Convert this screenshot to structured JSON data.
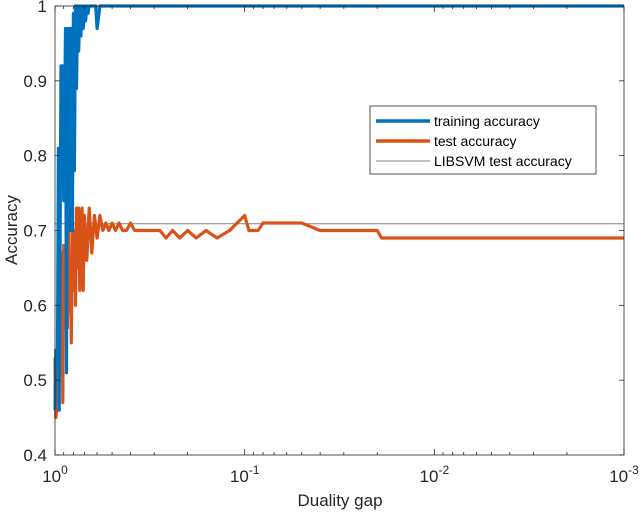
{
  "chart_data": {
    "type": "line",
    "title": "",
    "xlabel": "Duality gap",
    "ylabel": "Accuracy",
    "xscale": "log",
    "x_reversed": true,
    "xlim": [
      1,
      0.001
    ],
    "ylim": [
      0.4,
      1
    ],
    "x_ticks": [
      "10^0",
      "10^-1",
      "10^-2",
      "10^-3"
    ],
    "y_ticks": [
      "0.4",
      "0.5",
      "0.6",
      "0.7",
      "0.8",
      "0.9",
      "1"
    ],
    "grid": false,
    "legend_position": "upper right (inside, center-right)",
    "legend": [
      "training accuracy",
      "test accuracy",
      "LIBSVM test accuracy"
    ],
    "series": [
      {
        "name": "training accuracy",
        "color": "#0072BD",
        "x": [
          1.0,
          0.99,
          0.97,
          0.96,
          0.95,
          0.93,
          0.92,
          0.91,
          0.9,
          0.88,
          0.87,
          0.86,
          0.85,
          0.84,
          0.83,
          0.82,
          0.81,
          0.8,
          0.79,
          0.78,
          0.77,
          0.76,
          0.75,
          0.74,
          0.73,
          0.72,
          0.71,
          0.7,
          0.69,
          0.68,
          0.67,
          0.66,
          0.65,
          0.64,
          0.63,
          0.62,
          0.61,
          0.6,
          0.58,
          0.55,
          0.5,
          0.45,
          0.3,
          0.1,
          0.01,
          0.001
        ],
        "y": [
          0.46,
          0.54,
          0.54,
          0.81,
          0.46,
          0.92,
          0.78,
          0.92,
          0.74,
          0.97,
          0.51,
          0.97,
          0.78,
          0.97,
          0.7,
          0.97,
          0.7,
          0.99,
          0.78,
          1.0,
          0.89,
          1.0,
          0.94,
          1.0,
          0.96,
          1.0,
          0.97,
          1.0,
          0.98,
          1.0,
          0.99,
          1.0,
          1.0,
          1.0,
          1.0,
          1.0,
          1.0,
          0.97,
          1.0,
          1.0,
          1.0,
          1.0,
          1.0,
          1.0,
          1.0,
          1.0
        ]
      },
      {
        "name": "test accuracy",
        "color": "#D95319",
        "x": [
          1.0,
          0.99,
          0.98,
          0.97,
          0.95,
          0.93,
          0.92,
          0.91,
          0.9,
          0.88,
          0.87,
          0.86,
          0.85,
          0.84,
          0.83,
          0.82,
          0.81,
          0.8,
          0.79,
          0.78,
          0.77,
          0.76,
          0.75,
          0.74,
          0.73,
          0.72,
          0.71,
          0.7,
          0.68,
          0.66,
          0.64,
          0.62,
          0.6,
          0.58,
          0.56,
          0.54,
          0.52,
          0.5,
          0.48,
          0.46,
          0.44,
          0.42,
          0.4,
          0.38,
          0.36,
          0.34,
          0.32,
          0.3,
          0.28,
          0.26,
          0.24,
          0.22,
          0.2,
          0.18,
          0.16,
          0.14,
          0.12,
          0.1,
          0.095,
          0.09,
          0.085,
          0.08,
          0.07,
          0.06,
          0.055,
          0.05,
          0.04,
          0.03,
          0.025,
          0.02,
          0.019,
          0.015,
          0.01,
          0.001
        ],
        "y": [
          0.53,
          0.45,
          0.46,
          0.46,
          0.67,
          0.55,
          0.67,
          0.47,
          0.68,
          0.57,
          0.63,
          0.57,
          0.72,
          0.59,
          0.66,
          0.55,
          0.72,
          0.62,
          0.7,
          0.6,
          0.73,
          0.65,
          0.73,
          0.62,
          0.71,
          0.73,
          0.62,
          0.72,
          0.66,
          0.73,
          0.67,
          0.72,
          0.69,
          0.72,
          0.7,
          0.71,
          0.7,
          0.71,
          0.7,
          0.71,
          0.7,
          0.7,
          0.71,
          0.7,
          0.7,
          0.7,
          0.7,
          0.7,
          0.7,
          0.69,
          0.7,
          0.69,
          0.7,
          0.69,
          0.7,
          0.69,
          0.7,
          0.72,
          0.7,
          0.7,
          0.7,
          0.71,
          0.71,
          0.71,
          0.71,
          0.71,
          0.7,
          0.7,
          0.7,
          0.7,
          0.69,
          0.69,
          0.69,
          0.69
        ]
      },
      {
        "name": "LIBSVM test accuracy",
        "color": "#808080",
        "x": [
          1.0,
          0.001
        ],
        "y": [
          0.709,
          0.709
        ]
      }
    ]
  }
}
